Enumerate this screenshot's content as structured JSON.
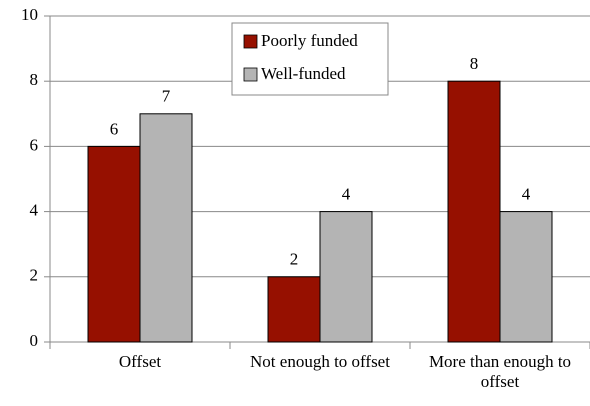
{
  "chart_data": {
    "type": "bar",
    "categories": [
      "Offset",
      "Not enough to offset",
      "More than enough to offset"
    ],
    "series": [
      {
        "name": "Poorly funded",
        "color": "#961000",
        "values": [
          6,
          2,
          8
        ]
      },
      {
        "name": "Well-funded",
        "color": "#b4b4b4",
        "values": [
          7,
          4,
          4
        ]
      }
    ],
    "ylim": [
      0,
      10
    ],
    "yticks": [
      0,
      2,
      4,
      6,
      8,
      10
    ],
    "grid": true,
    "legend": "top"
  }
}
